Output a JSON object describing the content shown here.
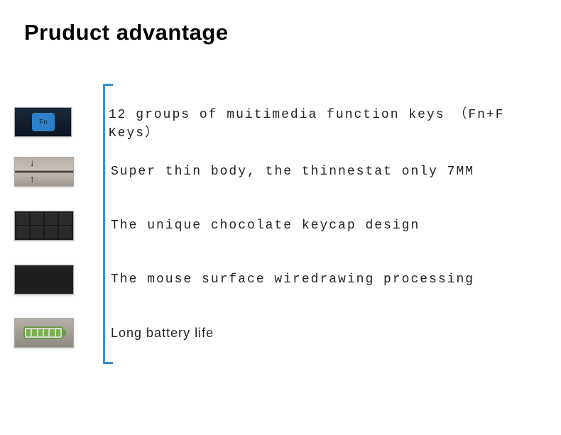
{
  "title": "Pruduct advantage",
  "bracket_color": "#3d8fd6",
  "features": [
    {
      "text": "12 groups of muitimedia function keys （Fn+F Keys）",
      "icon": "fn-key-icon",
      "fn_label": "Fn"
    },
    {
      "text": "Super thin body, the thinnestat only 7MM",
      "icon": "thin-body-icon"
    },
    {
      "text": "The unique chocolate keycap design",
      "icon": "keycap-icon"
    },
    {
      "text": "The mouse surface wiredrawing processing",
      "icon": "wiredrawing-icon"
    },
    {
      "text": "Long battery life",
      "icon": "battery-icon"
    }
  ],
  "text_color": "#222222",
  "feature_fontsize": 18,
  "title_fontsize": 31
}
